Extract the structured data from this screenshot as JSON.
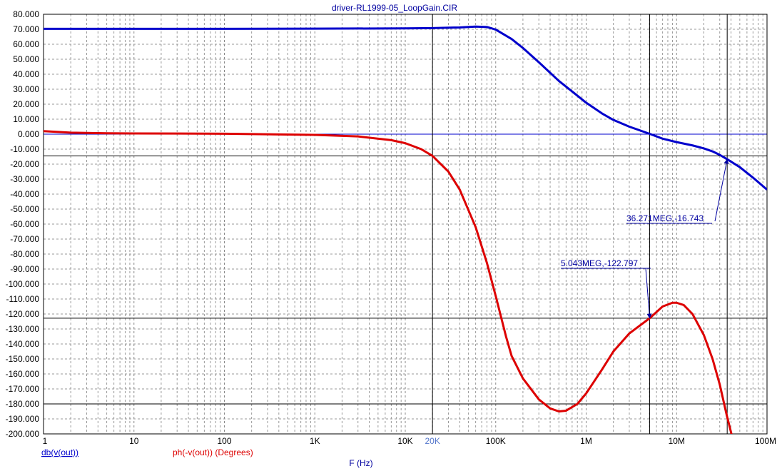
{
  "chart_data": {
    "type": "line",
    "title": "driver-RL1999-05_LoopGain.CIR",
    "xlabel": "F (Hz)",
    "x_scale": "log",
    "xlim": [
      1,
      100000000
    ],
    "ylim": [
      -200,
      80
    ],
    "grid": true,
    "x_ticks": [
      {
        "value": 1,
        "label": "1"
      },
      {
        "value": 10,
        "label": "10"
      },
      {
        "value": 100,
        "label": "100"
      },
      {
        "value": 1000,
        "label": "1K"
      },
      {
        "value": 10000,
        "label": "10K"
      },
      {
        "value": 100000,
        "label": "100K"
      },
      {
        "value": 1000000,
        "label": "1M"
      },
      {
        "value": 10000000,
        "label": "10M"
      },
      {
        "value": 100000000,
        "label": "100M"
      }
    ],
    "x_cursor_label": {
      "value": 20000,
      "label": "20K"
    },
    "y_ticks": [
      {
        "value": 80,
        "label": "80.000"
      },
      {
        "value": 70,
        "label": "70.000"
      },
      {
        "value": 60,
        "label": "60.000"
      },
      {
        "value": 50,
        "label": "50.000"
      },
      {
        "value": 40,
        "label": "40.000"
      },
      {
        "value": 30,
        "label": "30.000"
      },
      {
        "value": 20,
        "label": "20.000"
      },
      {
        "value": 10,
        "label": "10.000"
      },
      {
        "value": 0,
        "label": "0.000"
      },
      {
        "value": -10,
        "label": "-10.000"
      },
      {
        "value": -20,
        "label": "-20.000"
      },
      {
        "value": -30,
        "label": "-30.000"
      },
      {
        "value": -40,
        "label": "-40.000"
      },
      {
        "value": -50,
        "label": "-50.000"
      },
      {
        "value": -60,
        "label": "-60.000"
      },
      {
        "value": -70,
        "label": "-70.000"
      },
      {
        "value": -80,
        "label": "-80.000"
      },
      {
        "value": -90,
        "label": "-90.000"
      },
      {
        "value": -100,
        "label": "-100.000"
      },
      {
        "value": -110,
        "label": "-110.000"
      },
      {
        "value": -120,
        "label": "-120.000"
      },
      {
        "value": -130,
        "label": "-130.000"
      },
      {
        "value": -140,
        "label": "-140.000"
      },
      {
        "value": -150,
        "label": "-150.000"
      },
      {
        "value": -160,
        "label": "-160.000"
      },
      {
        "value": -170,
        "label": "-170.000"
      },
      {
        "value": -180,
        "label": "-180.000"
      },
      {
        "value": -190,
        "label": "-190.000"
      },
      {
        "value": -200,
        "label": "-200.000"
      }
    ],
    "series": [
      {
        "name": "db(v(out))",
        "color": "#0000cc",
        "x": [
          1,
          10,
          100,
          1000,
          10000,
          20000,
          40000,
          60000,
          80000,
          100000,
          150000,
          200000,
          300000,
          500000,
          700000,
          1000000,
          1500000,
          2000000,
          3000000,
          5000000,
          7000000,
          10000000,
          15000000,
          20000000,
          25000000,
          30000000,
          36271000,
          50000000,
          70000000,
          100000000
        ],
        "y": [
          70.3,
          70.3,
          70.3,
          70.4,
          70.6,
          70.8,
          71.2,
          71.8,
          71.5,
          69.8,
          63.5,
          57.5,
          48,
          35.5,
          28.5,
          21,
          13.8,
          9.5,
          5,
          0.3,
          -3,
          -5.3,
          -7.5,
          -9.5,
          -11.5,
          -13.8,
          -16.743,
          -22,
          -29,
          -37
        ]
      },
      {
        "name": "ph(-v(out)) (Degrees)",
        "color": "#dd0000",
        "x": [
          1,
          2,
          5,
          10,
          100,
          1000,
          3000,
          7000,
          10000,
          15000,
          20000,
          30000,
          40000,
          60000,
          80000,
          100000,
          130000,
          150000,
          200000,
          300000,
          400000,
          500000,
          600000,
          800000,
          1000000,
          1500000,
          2000000,
          3000000,
          5043000,
          7000000,
          9000000,
          10000000,
          12000000,
          15000000,
          20000000,
          25000000,
          30000000,
          36000000,
          42000000
        ],
        "y": [
          2,
          1,
          0.6,
          0.5,
          0.3,
          -0.5,
          -1.5,
          -4,
          -6,
          -10,
          -14.5,
          -25,
          -37,
          -62,
          -86,
          -108,
          -135,
          -148,
          -163,
          -177,
          -183,
          -185,
          -184.5,
          -180,
          -173,
          -157,
          -145,
          -133,
          -122.797,
          -115,
          -112.5,
          -112.5,
          -114,
          -120,
          -134,
          -150,
          -167,
          -188,
          -204
        ]
      }
    ],
    "reference_lines": {
      "horizontal": [
        0,
        -14.5,
        -122.797,
        -180
      ],
      "vertical": [
        20000,
        5043000,
        36271000
      ]
    },
    "annotations": [
      {
        "label": "36.271MEG,-16.743",
        "x": 36271000,
        "y": -16.743
      },
      {
        "label": "5.043MEG,-122.797",
        "x": 5043000,
        "y": -122.797
      }
    ]
  }
}
